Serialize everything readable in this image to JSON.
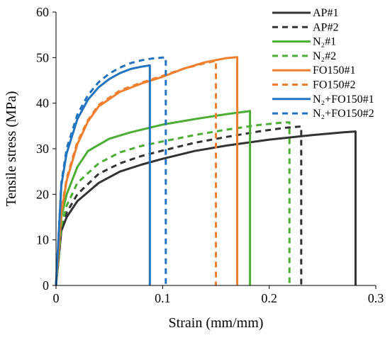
{
  "chart_data": {
    "type": "line",
    "xlabel": "Strain (mm/mm)",
    "ylabel": "Tensile stress (MPa)",
    "xlim": [
      0,
      0.3
    ],
    "ylim": [
      0,
      60
    ],
    "x_ticks": [
      0,
      0.1,
      0.2,
      0.3
    ],
    "x_tick_labels": [
      "0",
      "0.1",
      "0.2",
      "0.3"
    ],
    "y_ticks": [
      0,
      10,
      20,
      30,
      40,
      50,
      60
    ],
    "y_tick_labels": [
      "0",
      "10",
      "20",
      "30",
      "40",
      "50",
      "60"
    ],
    "grid": false,
    "legend_position": "top-right",
    "series": [
      {
        "name": "AP#1",
        "color": "#333333",
        "dash": "solid",
        "points": [
          [
            0,
            0
          ],
          [
            0.005,
            12
          ],
          [
            0.01,
            15
          ],
          [
            0.02,
            18.5
          ],
          [
            0.04,
            22.5
          ],
          [
            0.06,
            25
          ],
          [
            0.08,
            26.5
          ],
          [
            0.1,
            27.8
          ],
          [
            0.13,
            29.5
          ],
          [
            0.16,
            30.7
          ],
          [
            0.2,
            32
          ],
          [
            0.24,
            33
          ],
          [
            0.27,
            33.6
          ],
          [
            0.281,
            33.8
          ]
        ],
        "break": [
          0.281,
          0
        ]
      },
      {
        "name": "AP#2",
        "color": "#333333",
        "dash": "dashed",
        "points": [
          [
            0,
            0
          ],
          [
            0.005,
            12.5
          ],
          [
            0.01,
            16
          ],
          [
            0.02,
            20
          ],
          [
            0.04,
            24.5
          ],
          [
            0.06,
            26.8
          ],
          [
            0.08,
            28.4
          ],
          [
            0.1,
            29.6
          ],
          [
            0.13,
            31.3
          ],
          [
            0.16,
            32.6
          ],
          [
            0.19,
            33.8
          ],
          [
            0.215,
            34.6
          ],
          [
            0.23,
            34.9
          ]
        ],
        "break": [
          0.23,
          0
        ]
      },
      {
        "name": "N₂#1",
        "color": "#4cae34",
        "dash": "solid",
        "points": [
          [
            0,
            0
          ],
          [
            0.005,
            15
          ],
          [
            0.01,
            20
          ],
          [
            0.02,
            26
          ],
          [
            0.03,
            29.5
          ],
          [
            0.05,
            32.2
          ],
          [
            0.07,
            33.6
          ],
          [
            0.1,
            35.3
          ],
          [
            0.13,
            36.5
          ],
          [
            0.16,
            37.6
          ],
          [
            0.18,
            38.2
          ],
          [
            0.182,
            38.3
          ]
        ],
        "break": [
          0.182,
          0
        ]
      },
      {
        "name": "N₂#2",
        "color": "#4cae34",
        "dash": "dashed",
        "points": [
          [
            0,
            0
          ],
          [
            0.005,
            13
          ],
          [
            0.01,
            17.5
          ],
          [
            0.02,
            22.5
          ],
          [
            0.04,
            26.8
          ],
          [
            0.06,
            29.2
          ],
          [
            0.08,
            30.6
          ],
          [
            0.1,
            31.6
          ],
          [
            0.13,
            33
          ],
          [
            0.16,
            34.2
          ],
          [
            0.19,
            35.2
          ],
          [
            0.215,
            35.8
          ],
          [
            0.219,
            35.8
          ]
        ],
        "break": [
          0.219,
          0
        ]
      },
      {
        "name": "FO150#1",
        "color": "#f07f2d",
        "dash": "solid",
        "points": [
          [
            0,
            0
          ],
          [
            0.005,
            16
          ],
          [
            0.01,
            23
          ],
          [
            0.02,
            31
          ],
          [
            0.03,
            36
          ],
          [
            0.04,
            39.3
          ],
          [
            0.06,
            42.5
          ],
          [
            0.08,
            44.3
          ],
          [
            0.1,
            45.8
          ],
          [
            0.12,
            47.6
          ],
          [
            0.14,
            49
          ],
          [
            0.16,
            49.9
          ],
          [
            0.17,
            50.1
          ]
        ],
        "break": [
          0.17,
          0
        ]
      },
      {
        "name": "FO150#2",
        "color": "#f07f2d",
        "dash": "dashed",
        "points": [
          [
            0,
            0
          ],
          [
            0.005,
            16.5
          ],
          [
            0.01,
            23.5
          ],
          [
            0.02,
            31.5
          ],
          [
            0.03,
            36.3
          ],
          [
            0.04,
            39.6
          ],
          [
            0.06,
            42.8
          ],
          [
            0.08,
            44.5
          ],
          [
            0.1,
            46
          ],
          [
            0.12,
            47.6
          ],
          [
            0.14,
            48.8
          ],
          [
            0.15,
            49.3
          ]
        ],
        "break": [
          0.15,
          0
        ]
      },
      {
        "name": "N₂+FO150#1",
        "color": "#2273c0",
        "dash": "solid",
        "points": [
          [
            0,
            0
          ],
          [
            0.005,
            22
          ],
          [
            0.01,
            29
          ],
          [
            0.02,
            36.5
          ],
          [
            0.03,
            40.8
          ],
          [
            0.04,
            43.5
          ],
          [
            0.05,
            45.3
          ],
          [
            0.06,
            46.6
          ],
          [
            0.07,
            47.5
          ],
          [
            0.08,
            48
          ],
          [
            0.088,
            48.3
          ]
        ],
        "break": [
          0.088,
          0
        ]
      },
      {
        "name": "N₂+FO150#2",
        "color": "#2273c0",
        "dash": "dashed",
        "points": [
          [
            0,
            0
          ],
          [
            0.005,
            22.5
          ],
          [
            0.01,
            30
          ],
          [
            0.02,
            37.5
          ],
          [
            0.03,
            41.8
          ],
          [
            0.04,
            44.6
          ],
          [
            0.05,
            46.5
          ],
          [
            0.06,
            47.8
          ],
          [
            0.07,
            48.8
          ],
          [
            0.08,
            49.4
          ],
          [
            0.09,
            49.8
          ],
          [
            0.1,
            50
          ],
          [
            0.103,
            50
          ]
        ],
        "break": [
          0.103,
          0
        ]
      }
    ]
  }
}
